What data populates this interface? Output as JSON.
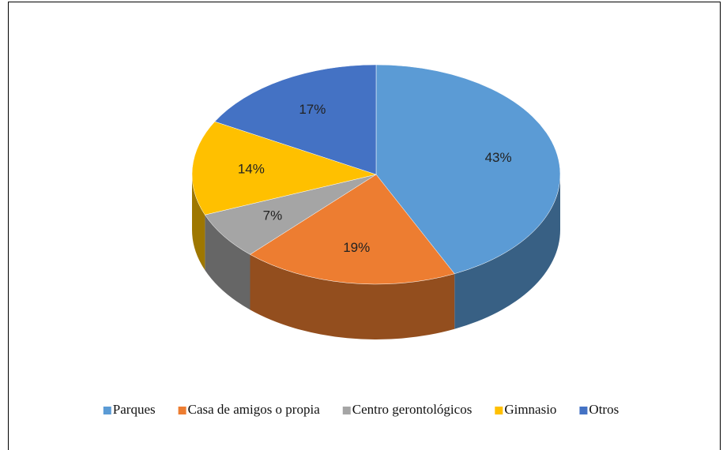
{
  "chart_data": {
    "type": "pie",
    "three_d": true,
    "categories": [
      "Parques",
      "Casa de amigos o propia",
      "Centro gerontológicos",
      "Gimnasio",
      "Otros"
    ],
    "values": [
      43,
      19,
      7,
      14,
      17
    ],
    "value_labels": [
      "43%",
      "19%",
      "7%",
      "14%",
      "17%"
    ],
    "colors": [
      "#5b9bd5",
      "#ed7d31",
      "#a5a5a5",
      "#ffc000",
      "#4472c4"
    ],
    "legend": "bottom"
  }
}
